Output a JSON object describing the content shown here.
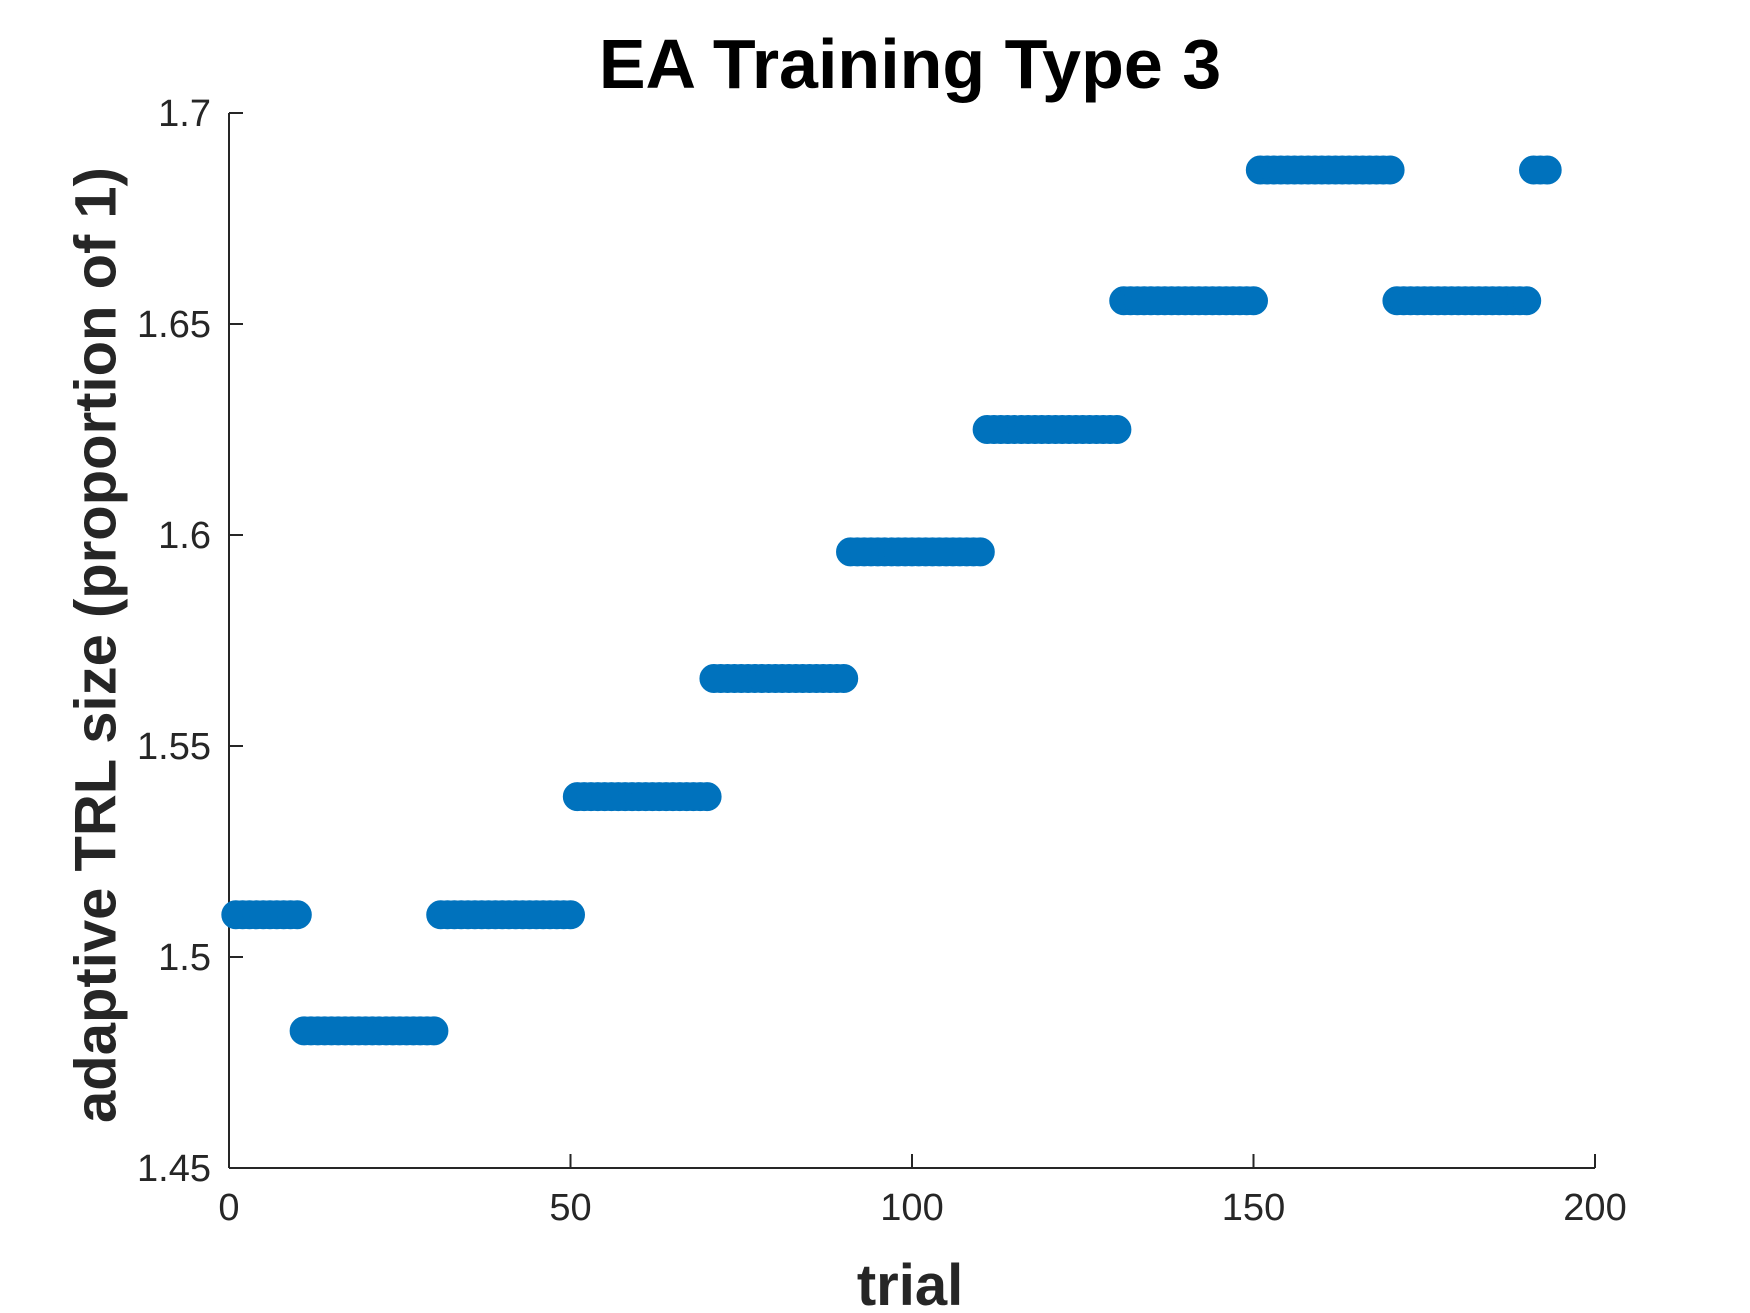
{
  "chart_data": {
    "type": "scatter",
    "title": "EA Training Type 3",
    "xlabel": "trial",
    "ylabel": "adaptive TRL size (proportion of 1)",
    "xlim": [
      0,
      200
    ],
    "ylim": [
      1.45,
      1.7
    ],
    "xticks": [
      0,
      50,
      100,
      150,
      200
    ],
    "xtick_labels": [
      "0",
      "50",
      "100",
      "150",
      "200"
    ],
    "yticks": [
      1.45,
      1.5,
      1.55,
      1.6,
      1.65,
      1.7
    ],
    "ytick_labels": [
      "1.45",
      "1.5",
      "1.55",
      "1.6",
      "1.65",
      "1.7"
    ],
    "marker_color": "#0072BD",
    "grid": false,
    "series": [
      {
        "segments": [
          {
            "x_start": 1,
            "x_end": 10,
            "y": 1.51
          },
          {
            "x_start": 11,
            "x_end": 30,
            "y": 1.4825
          },
          {
            "x_start": 31,
            "x_end": 50,
            "y": 1.51
          },
          {
            "x_start": 51,
            "x_end": 70,
            "y": 1.538
          },
          {
            "x_start": 71,
            "x_end": 90,
            "y": 1.566
          },
          {
            "x_start": 91,
            "x_end": 110,
            "y": 1.596
          },
          {
            "x_start": 111,
            "x_end": 130,
            "y": 1.625
          },
          {
            "x_start": 131,
            "x_end": 150,
            "y": 1.6555
          },
          {
            "x_start": 151,
            "x_end": 170,
            "y": 1.6865
          },
          {
            "x_start": 171,
            "x_end": 190,
            "y": 1.6555
          },
          {
            "x_start": 191,
            "x_end": 193,
            "y": 1.6865
          }
        ]
      }
    ]
  }
}
